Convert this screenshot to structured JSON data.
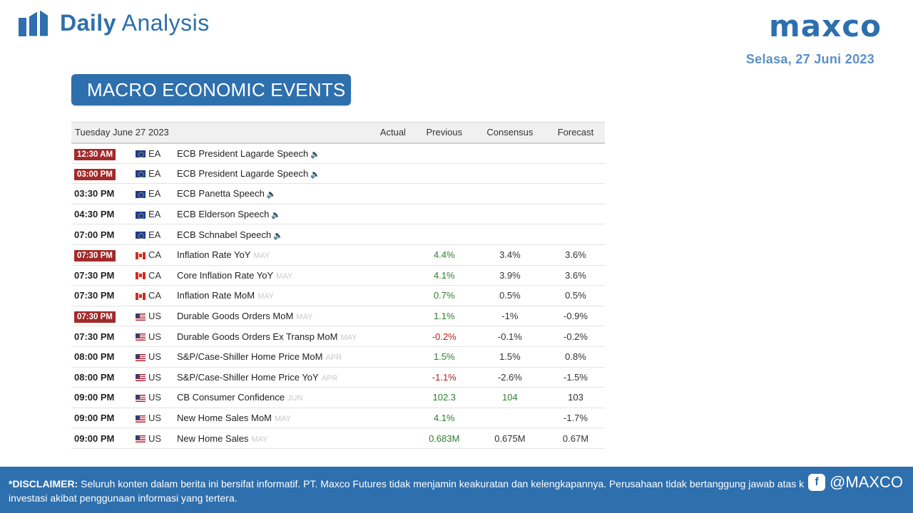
{
  "header": {
    "title_bold": "Daily",
    "title_regular": "Analysis",
    "logo": "maxco",
    "date": "Selasa, 27 Juni 2023"
  },
  "section": {
    "title": "MACRO ECONOMIC EVENTS"
  },
  "calendar": {
    "columns": {
      "date": "Tuesday June 27 2023",
      "actual": "Actual",
      "previous": "Previous",
      "consensus": "Consensus",
      "forecast": "Forecast"
    },
    "rows": [
      {
        "time": "12:30 AM",
        "hl": true,
        "flag": "eu",
        "country": "EA",
        "event": "ECB President Lagarde Speech",
        "period": "",
        "speech": true,
        "actual": "",
        "previous": "",
        "prev_tone": "",
        "consensus": "",
        "cons_tone": "",
        "forecast": ""
      },
      {
        "time": "03:00 PM",
        "hl": true,
        "flag": "eu",
        "country": "EA",
        "event": "ECB President Lagarde Speech",
        "period": "",
        "speech": true,
        "actual": "",
        "previous": "",
        "prev_tone": "",
        "consensus": "",
        "cons_tone": "",
        "forecast": ""
      },
      {
        "time": "03:30 PM",
        "hl": false,
        "flag": "eu",
        "country": "EA",
        "event": "ECB Panetta Speech",
        "period": "",
        "speech": true,
        "actual": "",
        "previous": "",
        "prev_tone": "",
        "consensus": "",
        "cons_tone": "",
        "forecast": ""
      },
      {
        "time": "04:30 PM",
        "hl": false,
        "flag": "eu",
        "country": "EA",
        "event": "ECB Elderson Speech",
        "period": "",
        "speech": true,
        "actual": "",
        "previous": "",
        "prev_tone": "",
        "consensus": "",
        "cons_tone": "",
        "forecast": ""
      },
      {
        "time": "07:00 PM",
        "hl": false,
        "flag": "eu",
        "country": "EA",
        "event": "ECB Schnabel Speech",
        "period": "",
        "speech": true,
        "actual": "",
        "previous": "",
        "prev_tone": "",
        "consensus": "",
        "cons_tone": "",
        "forecast": ""
      },
      {
        "time": "07:30 PM",
        "hl": true,
        "flag": "ca",
        "country": "CA",
        "event": "Inflation Rate YoY",
        "period": "MAY",
        "speech": false,
        "actual": "",
        "previous": "4.4%",
        "prev_tone": "pos",
        "consensus": "3.4%",
        "cons_tone": "neu",
        "forecast": "3.6%"
      },
      {
        "time": "07:30 PM",
        "hl": false,
        "flag": "ca",
        "country": "CA",
        "event": "Core Inflation Rate YoY",
        "period": "MAY",
        "speech": false,
        "actual": "",
        "previous": "4.1%",
        "prev_tone": "pos",
        "consensus": "3.9%",
        "cons_tone": "neu",
        "forecast": "3.6%"
      },
      {
        "time": "07:30 PM",
        "hl": false,
        "flag": "ca",
        "country": "CA",
        "event": "Inflation Rate MoM",
        "period": "MAY",
        "speech": false,
        "actual": "",
        "previous": "0.7%",
        "prev_tone": "pos",
        "consensus": "0.5%",
        "cons_tone": "neu",
        "forecast": "0.5%"
      },
      {
        "time": "07:30 PM",
        "hl": true,
        "flag": "us",
        "country": "US",
        "event": "Durable Goods Orders MoM",
        "period": "MAY",
        "speech": false,
        "actual": "",
        "previous": "1.1%",
        "prev_tone": "pos",
        "consensus": "-1%",
        "cons_tone": "neu",
        "forecast": "-0.9%"
      },
      {
        "time": "07:30 PM",
        "hl": false,
        "flag": "us",
        "country": "US",
        "event": "Durable Goods Orders Ex Transp MoM",
        "period": "MAY",
        "speech": false,
        "actual": "",
        "previous": "-0.2%",
        "prev_tone": "neg",
        "consensus": "-0.1%",
        "cons_tone": "neu",
        "forecast": "-0.2%"
      },
      {
        "time": "08:00 PM",
        "hl": false,
        "flag": "us",
        "country": "US",
        "event": "S&P/Case-Shiller Home Price MoM",
        "period": "APR",
        "speech": false,
        "actual": "",
        "previous": "1.5%",
        "prev_tone": "pos",
        "consensus": "1.5%",
        "cons_tone": "neu",
        "forecast": "0.8%"
      },
      {
        "time": "08:00 PM",
        "hl": false,
        "flag": "us",
        "country": "US",
        "event": "S&P/Case-Shiller Home Price YoY",
        "period": "APR",
        "speech": false,
        "actual": "",
        "previous": "-1.1%",
        "prev_tone": "neg",
        "consensus": "-2.6%",
        "cons_tone": "neu",
        "forecast": "-1.5%"
      },
      {
        "time": "09:00 PM",
        "hl": false,
        "flag": "us",
        "country": "US",
        "event": "CB Consumer Confidence",
        "period": "JUN",
        "speech": false,
        "actual": "",
        "previous": "102.3",
        "prev_tone": "pos",
        "consensus": "104",
        "cons_tone": "pos",
        "forecast": "103"
      },
      {
        "time": "09:00 PM",
        "hl": false,
        "flag": "us",
        "country": "US",
        "event": "New Home Sales MoM",
        "period": "MAY",
        "speech": false,
        "actual": "",
        "previous": "4.1%",
        "prev_tone": "pos",
        "consensus": "",
        "cons_tone": "",
        "forecast": "-1.7%"
      },
      {
        "time": "09:00 PM",
        "hl": false,
        "flag": "us",
        "country": "US",
        "event": "New Home Sales",
        "period": "MAY",
        "speech": false,
        "actual": "",
        "previous": "0.683M",
        "prev_tone": "pos",
        "consensus": "0.675M",
        "cons_tone": "neu",
        "forecast": "0.67M"
      }
    ]
  },
  "footer": {
    "label": "*DISCLAIMER:",
    "text": "Seluruh konten dalam berita ini bersifat informatif. PT. Maxco Futures tidak menjamin keakuratan dan kelengkapannya. Perusahaan tidak bertanggung jawab atas kerugian investasi akibat penggunaan informasi yang tertera.",
    "social_handle": "@MAXCO"
  }
}
